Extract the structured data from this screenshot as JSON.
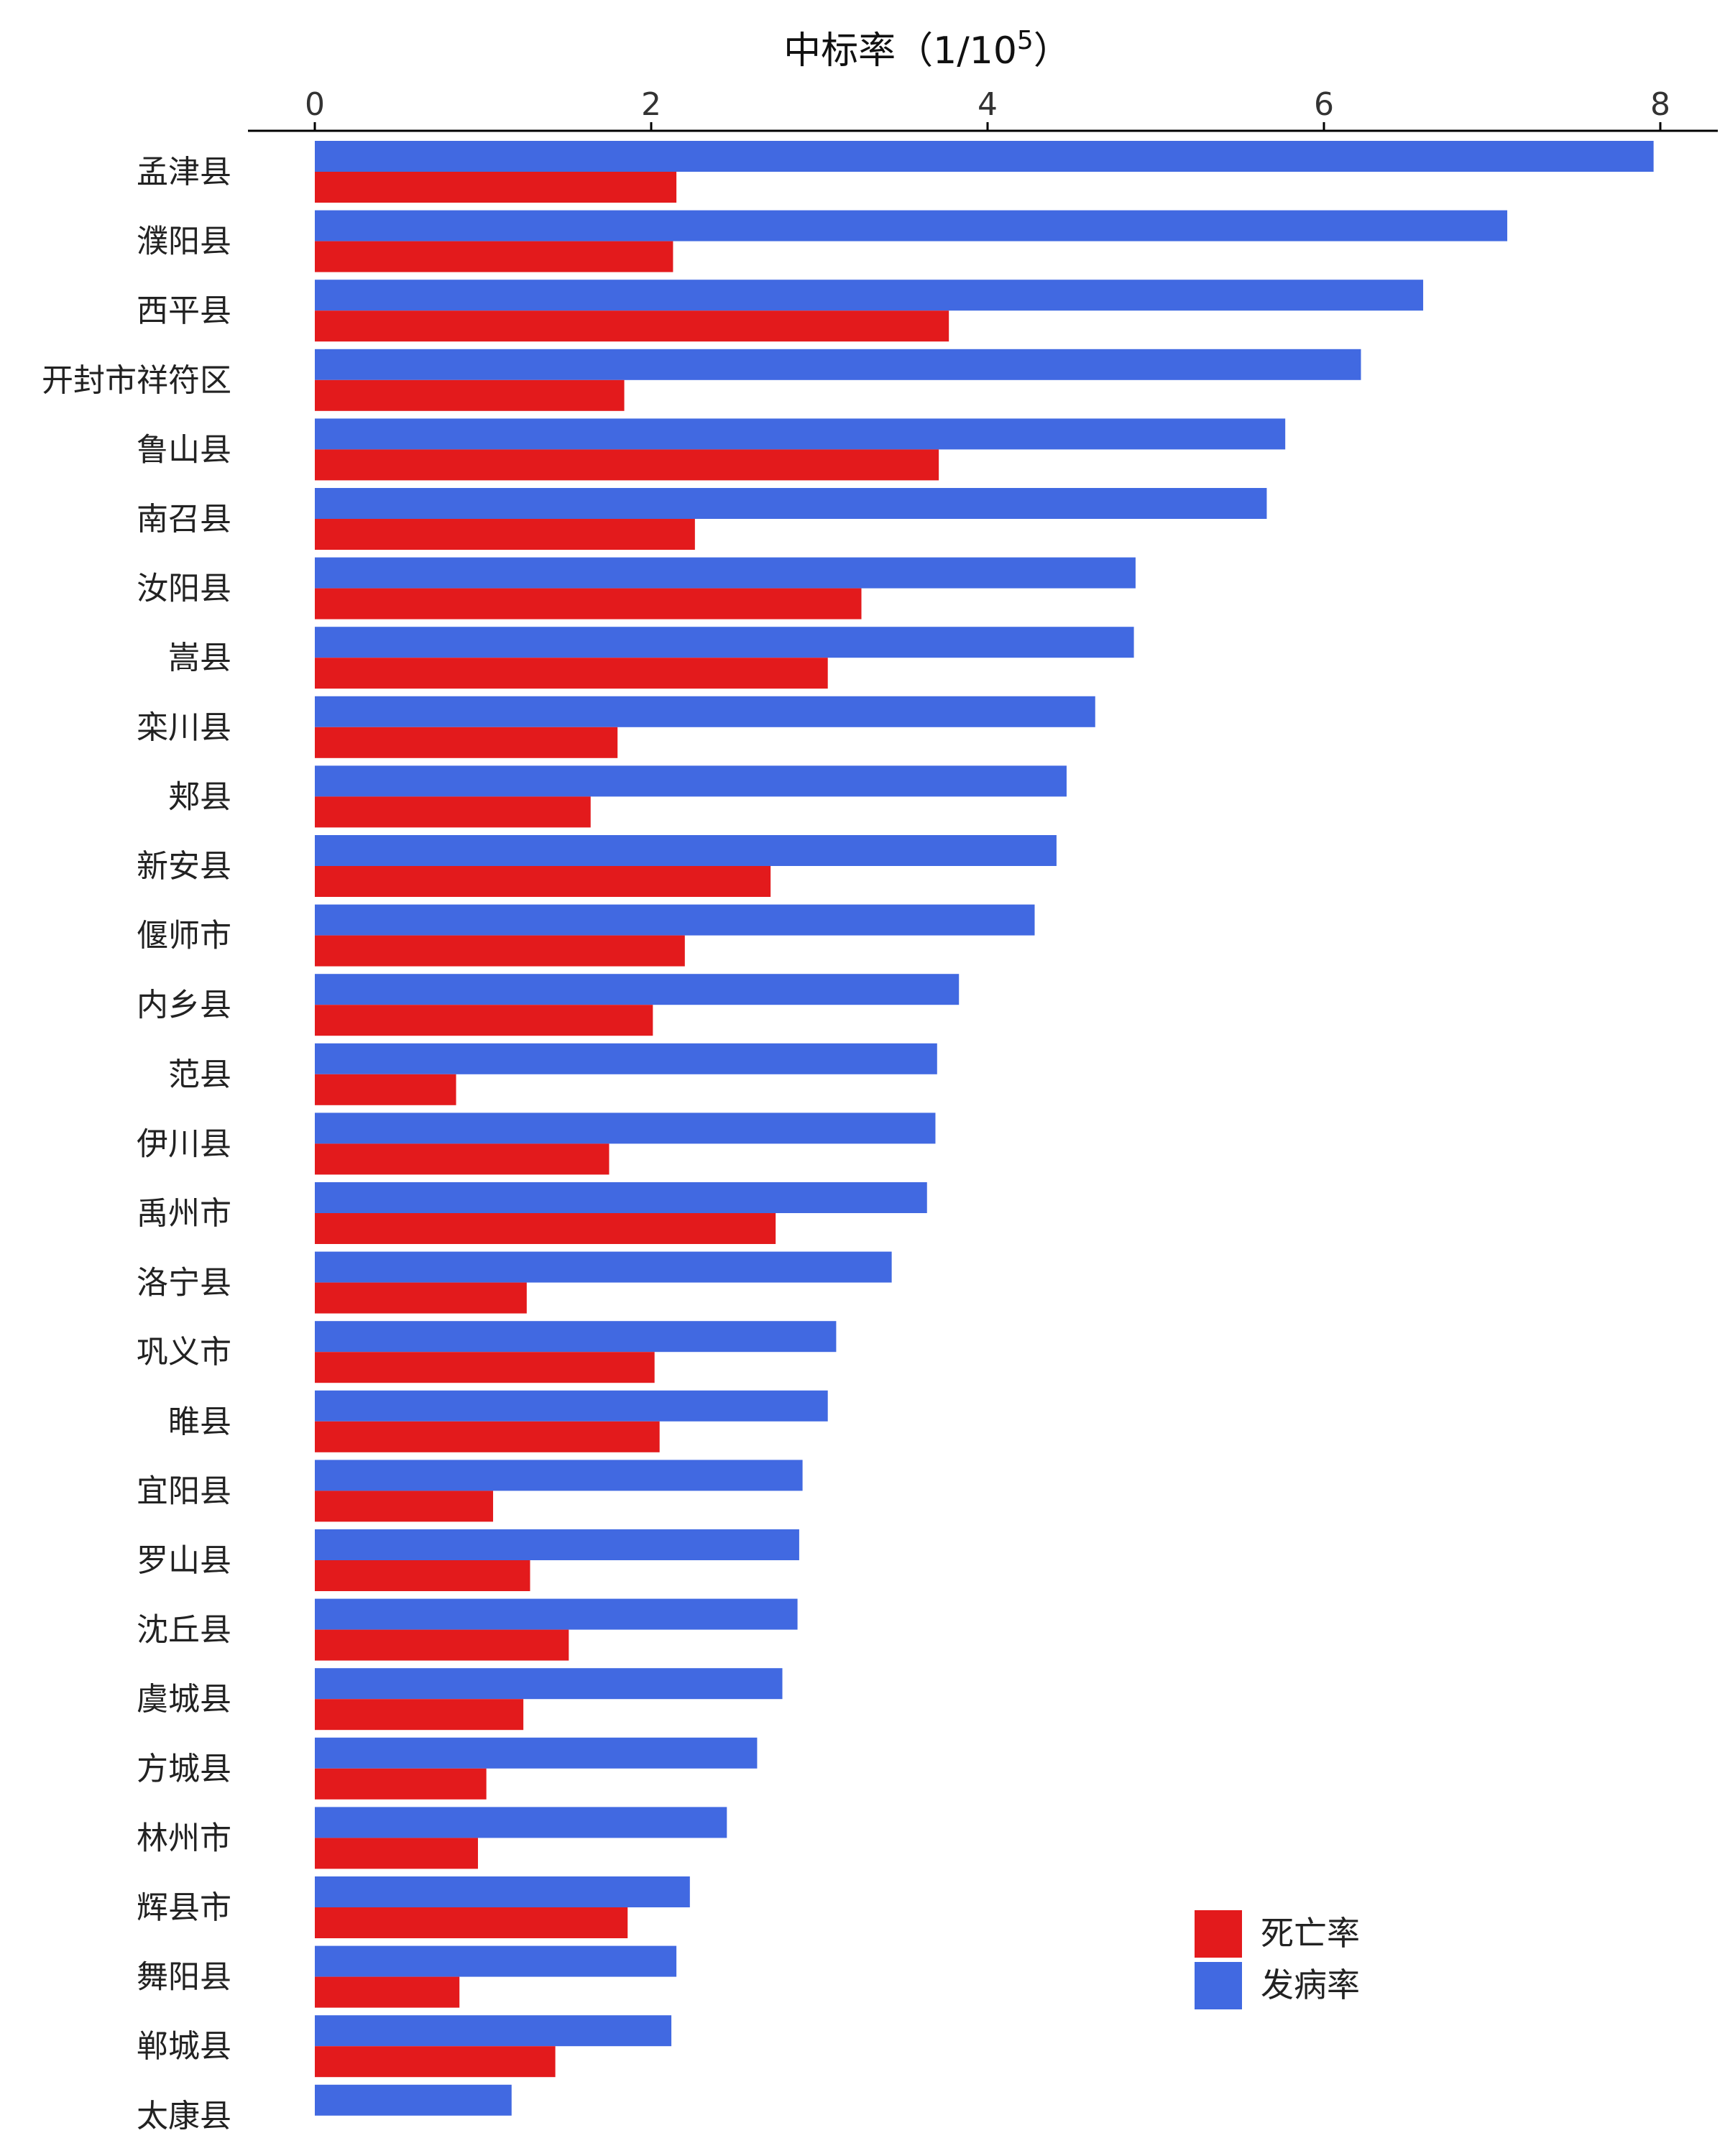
{
  "chart_data": {
    "type": "bar",
    "orientation": "horizontal",
    "title": "",
    "xlabel": "中标率（1/10",
    "xlabel_superscript": "5",
    "xlabel_close": "）",
    "ylabel": "",
    "xlim": [
      0,
      8
    ],
    "xticks": [
      "0",
      "2",
      "4",
      "6",
      "8"
    ],
    "grid": false,
    "legend_position": "bottom-right",
    "categories": [
      "孟津县",
      "濮阳县",
      "西平县",
      "开封市祥符区",
      "鲁山县",
      "南召县",
      "汝阳县",
      "嵩县",
      "栾川县",
      "郏县",
      "新安县",
      "偃师市",
      "内乡县",
      "范县",
      "伊川县",
      "禹州市",
      "洛宁县",
      "巩义市",
      "睢县",
      "宜阳县",
      "罗山县",
      "沈丘县",
      "虞城县",
      "方城县",
      "林州市",
      "辉县市",
      "舞阳县",
      "郸城县",
      "太康县"
    ],
    "series": [
      {
        "name": "发病率",
        "color": "#4169E1",
        "values": [
          7.96,
          7.09,
          6.59,
          6.22,
          5.77,
          5.66,
          4.88,
          4.87,
          4.64,
          4.47,
          4.41,
          4.28,
          3.83,
          3.7,
          3.69,
          3.64,
          3.43,
          3.1,
          3.05,
          2.9,
          2.88,
          2.87,
          2.78,
          2.63,
          2.45,
          2.23,
          2.15,
          2.12,
          1.17
        ]
      },
      {
        "name": "死亡率",
        "color": "#E31A1C",
        "values": [
          2.15,
          2.13,
          3.77,
          1.84,
          3.71,
          2.26,
          3.25,
          3.05,
          1.8,
          1.64,
          2.71,
          2.2,
          2.01,
          0.84,
          1.75,
          2.74,
          1.26,
          2.02,
          2.05,
          1.06,
          1.28,
          1.51,
          1.24,
          1.02,
          0.97,
          1.86,
          0.86,
          1.43,
          0
        ]
      }
    ],
    "legend": [
      {
        "name": "死亡率",
        "color": "#E31A1C"
      },
      {
        "name": "发病率",
        "color": "#4169E1"
      }
    ]
  }
}
